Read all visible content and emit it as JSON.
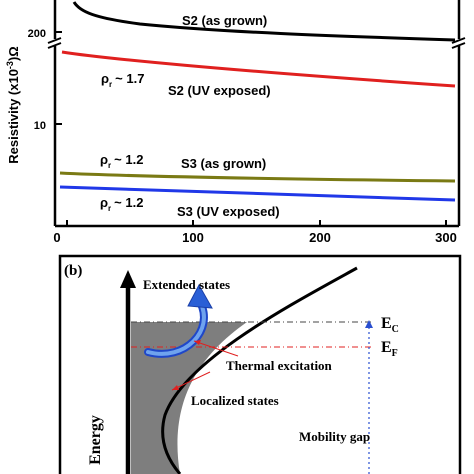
{
  "panel_a": {
    "ylabel": "Resistivity (x10",
    "ylabel_exp": "-3",
    "ylabel_unit": ")Ω",
    "yticks": [
      "200",
      "10"
    ],
    "xticks": [
      "0",
      "100",
      "200",
      "300"
    ],
    "labels": {
      "s2_grown": "S2 (as grown)",
      "s2_uv": "S2 (UV exposed)",
      "s3_grown": "S3 (as grown)",
      "s3_uv": "S3 (UV exposed)",
      "rho_sym": "ρ",
      "rho_sub": "r",
      "rho_s2": "~ 1.7",
      "rho_s3a": "~ 1.2",
      "rho_s3b": "~ 1.2"
    },
    "colors": {
      "s2_grown": "#000000",
      "s2_uv": "#e0201f",
      "s3_grown": "#7a7a14",
      "s3_uv": "#2038e8"
    }
  },
  "panel_b": {
    "tag": "(b)",
    "extended": "Extended states",
    "thermal": "Thermal excitation",
    "localized": "Localized states",
    "mobility": "Mobility gap",
    "energy": "Energy",
    "ec": "E",
    "ec_sub": "C",
    "ef": "E",
    "ef_sub": "F"
  },
  "chart_data": {
    "type": "line",
    "xlabel": "",
    "ylabel": "Resistivity (x10^-3 Ω)",
    "xlim": [
      0,
      300
    ],
    "x": [
      0,
      100,
      200,
      300
    ],
    "series": [
      {
        "name": "S2 (as grown)",
        "values": [
          210,
          200,
          197,
          195
        ]
      },
      {
        "name": "S2 (UV exposed)",
        "values": [
          23,
          20,
          18,
          16
        ]
      },
      {
        "name": "S3 (as grown)",
        "values": [
          5.6,
          5.3,
          5.2,
          5.1
        ]
      },
      {
        "name": "S3 (UV exposed)",
        "values": [
          4.1,
          3.9,
          3.7,
          3.5
        ]
      }
    ]
  }
}
